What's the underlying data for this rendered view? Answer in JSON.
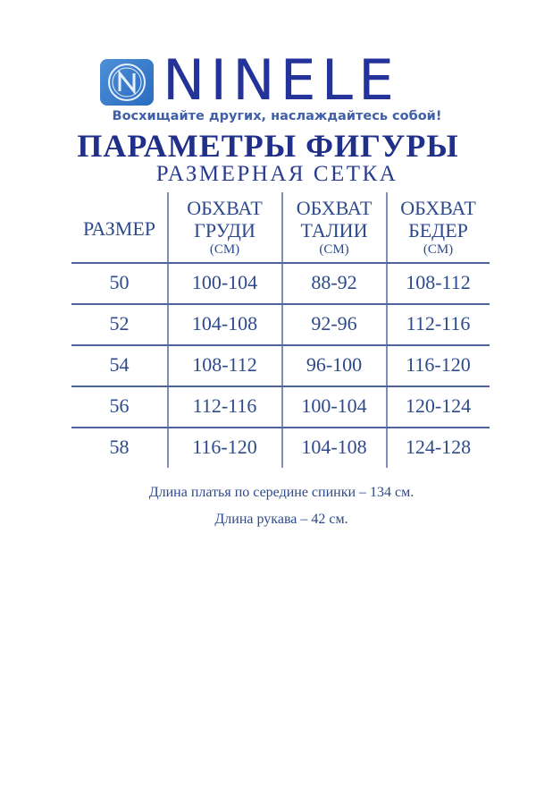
{
  "brand": {
    "name": "NINELE",
    "tagline": "Восхищайте других, наслаждайтесь собой!",
    "logo_letter": "N",
    "color": "#23339a"
  },
  "title": "ПАРАМЕТРЫ ФИГУРЫ",
  "subtitle": "РАЗМЕРНАЯ СЕТКА",
  "table": {
    "headers": [
      {
        "line1": "РАЗМЕР"
      },
      {
        "line1": "ОБХВАТ",
        "line2": "ГРУДИ",
        "unit": "(СМ)"
      },
      {
        "line1": "ОБХВАТ",
        "line2": "ТАЛИИ",
        "unit": "(СМ)"
      },
      {
        "line1": "ОБХВАТ",
        "line2": "БЕДЕР",
        "unit": "(СМ)"
      }
    ],
    "rows": [
      [
        "50",
        "100-104",
        "88-92",
        "108-112"
      ],
      [
        "52",
        "104-108",
        "92-96",
        "112-116"
      ],
      [
        "54",
        "108-112",
        "96-100",
        "116-120"
      ],
      [
        "56",
        "112-116",
        "100-104",
        "120-124"
      ],
      [
        "58",
        "116-120",
        "104-108",
        "124-128"
      ]
    ]
  },
  "notes": [
    "Длина платья по середине спинки – 134 см.",
    "Длина рукава – 42 см."
  ]
}
